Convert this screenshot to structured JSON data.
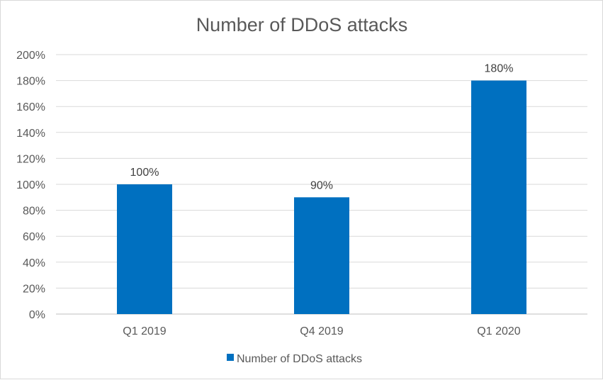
{
  "chart_data": {
    "type": "bar",
    "title": "Number of DDoS attacks",
    "categories": [
      "Q1 2019",
      "Q4 2019",
      "Q1 2020"
    ],
    "series": [
      {
        "name": "Number of DDoS attacks",
        "values": [
          100,
          90,
          180
        ],
        "color": "#0070c0"
      }
    ],
    "data_labels": [
      "100%",
      "90%",
      "180%"
    ],
    "y_ticks": [
      "0%",
      "20%",
      "40%",
      "60%",
      "80%",
      "100%",
      "120%",
      "140%",
      "160%",
      "180%",
      "200%"
    ],
    "ylim": [
      0,
      200
    ],
    "grid": true,
    "legend_position": "bottom",
    "xlabel": "",
    "ylabel": ""
  }
}
